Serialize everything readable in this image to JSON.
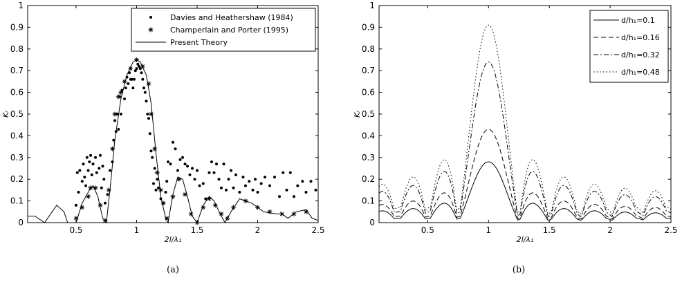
{
  "chart_data": [
    {
      "type": "scatter",
      "panel_caption": "(a)",
      "xlabel": "2l/λ₁",
      "ylabel": "Kᵣ",
      "xlim": [
        0.1,
        2.5
      ],
      "ylim": [
        0,
        1
      ],
      "xticks": [
        "0.5",
        "1",
        "1.5",
        "2",
        "2.5"
      ],
      "yticks": [
        "0",
        "0.1",
        "0.2",
        "0.3",
        "0.4",
        "0.5",
        "0.6",
        "0.7",
        "0.8",
        "0.9",
        "1"
      ],
      "legend_position": "top-right",
      "series": [
        {
          "name": "Davies and Heathershaw (1984)",
          "marker": "dot",
          "points": [
            [
              0.5,
              0.08
            ],
            [
              0.51,
              0.23
            ],
            [
              0.52,
              0.14
            ],
            [
              0.53,
              0.24
            ],
            [
              0.55,
              0.19
            ],
            [
              0.56,
              0.27
            ],
            [
              0.57,
              0.21
            ],
            [
              0.58,
              0.17
            ],
            [
              0.59,
              0.3
            ],
            [
              0.6,
              0.24
            ],
            [
              0.61,
              0.28
            ],
            [
              0.62,
              0.31
            ],
            [
              0.63,
              0.22
            ],
            [
              0.64,
              0.27
            ],
            [
              0.66,
              0.3
            ],
            [
              0.67,
              0.23
            ],
            [
              0.69,
              0.25
            ],
            [
              0.7,
              0.31
            ],
            [
              0.71,
              0.16
            ],
            [
              0.72,
              0.26
            ],
            [
              0.73,
              0.2
            ],
            [
              0.74,
              0.09
            ],
            [
              0.76,
              0.13
            ],
            [
              0.78,
              0.24
            ],
            [
              0.8,
              0.28
            ],
            [
              0.81,
              0.38
            ],
            [
              0.82,
              0.47
            ],
            [
              0.83,
              0.42
            ],
            [
              0.84,
              0.5
            ],
            [
              0.85,
              0.43
            ],
            [
              0.86,
              0.58
            ],
            [
              0.87,
              0.5
            ],
            [
              0.88,
              0.61
            ],
            [
              0.9,
              0.57
            ],
            [
              0.91,
              0.62
            ],
            [
              0.92,
              0.67
            ],
            [
              0.93,
              0.64
            ],
            [
              0.94,
              0.69
            ],
            [
              0.95,
              0.66
            ],
            [
              0.96,
              0.66
            ],
            [
              0.97,
              0.62
            ],
            [
              0.98,
              0.66
            ],
            [
              0.99,
              0.7
            ],
            [
              1.0,
              0.71
            ],
            [
              1.01,
              0.73
            ],
            [
              1.02,
              0.72
            ],
            [
              1.03,
              0.71
            ],
            [
              1.04,
              0.69
            ],
            [
              1.05,
              0.66
            ],
            [
              1.06,
              0.62
            ],
            [
              1.07,
              0.6
            ],
            [
              1.08,
              0.56
            ],
            [
              1.09,
              0.5
            ],
            [
              1.1,
              0.48
            ],
            [
              1.11,
              0.41
            ],
            [
              1.12,
              0.33
            ],
            [
              1.13,
              0.3
            ],
            [
              1.14,
              0.18
            ],
            [
              1.15,
              0.25
            ],
            [
              1.16,
              0.15
            ],
            [
              1.17,
              0.2
            ],
            [
              1.18,
              0.16
            ],
            [
              1.2,
              0.11
            ],
            [
              1.22,
              0.09
            ],
            [
              1.24,
              0.14
            ],
            [
              1.25,
              0.19
            ],
            [
              1.26,
              0.28
            ],
            [
              1.28,
              0.27
            ],
            [
              1.3,
              0.37
            ],
            [
              1.32,
              0.34
            ],
            [
              1.34,
              0.24
            ],
            [
              1.36,
              0.29
            ],
            [
              1.38,
              0.3
            ],
            [
              1.4,
              0.27
            ],
            [
              1.42,
              0.26
            ],
            [
              1.44,
              0.22
            ],
            [
              1.46,
              0.25
            ],
            [
              1.48,
              0.2
            ],
            [
              1.5,
              0.24
            ],
            [
              1.52,
              0.17
            ],
            [
              1.55,
              0.18
            ],
            [
              1.57,
              0.11
            ],
            [
              1.6,
              0.23
            ],
            [
              1.62,
              0.28
            ],
            [
              1.64,
              0.23
            ],
            [
              1.66,
              0.27
            ],
            [
              1.68,
              0.2
            ],
            [
              1.7,
              0.16
            ],
            [
              1.72,
              0.27
            ],
            [
              1.74,
              0.15
            ],
            [
              1.76,
              0.2
            ],
            [
              1.78,
              0.24
            ],
            [
              1.8,
              0.16
            ],
            [
              1.82,
              0.22
            ],
            [
              1.85,
              0.14
            ],
            [
              1.88,
              0.21
            ],
            [
              1.9,
              0.17
            ],
            [
              1.93,
              0.19
            ],
            [
              1.96,
              0.15
            ],
            [
              1.98,
              0.2
            ],
            [
              2.0,
              0.14
            ],
            [
              2.03,
              0.18
            ],
            [
              2.06,
              0.21
            ],
            [
              2.1,
              0.17
            ],
            [
              2.14,
              0.21
            ],
            [
              2.18,
              0.12
            ],
            [
              2.21,
              0.23
            ],
            [
              2.24,
              0.15
            ],
            [
              2.27,
              0.23
            ],
            [
              2.3,
              0.12
            ],
            [
              2.33,
              0.17
            ],
            [
              2.37,
              0.19
            ],
            [
              2.4,
              0.14
            ],
            [
              2.44,
              0.19
            ],
            [
              2.48,
              0.15
            ]
          ]
        },
        {
          "name": "Champerlain and Porter (1995)",
          "marker": "asterisk",
          "points": [
            [
              0.5,
              0.02
            ],
            [
              0.55,
              0.07
            ],
            [
              0.6,
              0.12
            ],
            [
              0.62,
              0.16
            ],
            [
              0.66,
              0.16
            ],
            [
              0.7,
              0.08
            ],
            [
              0.74,
              0.01
            ],
            [
              0.77,
              0.15
            ],
            [
              0.8,
              0.34
            ],
            [
              0.82,
              0.5
            ],
            [
              0.85,
              0.58
            ],
            [
              0.87,
              0.6
            ],
            [
              0.9,
              0.65
            ],
            [
              0.95,
              0.71
            ],
            [
              1.0,
              0.75
            ],
            [
              1.05,
              0.72
            ],
            [
              1.1,
              0.64
            ],
            [
              1.12,
              0.5
            ],
            [
              1.15,
              0.34
            ],
            [
              1.17,
              0.23
            ],
            [
              1.2,
              0.15
            ],
            [
              1.22,
              0.09
            ],
            [
              1.25,
              0.02
            ],
            [
              1.3,
              0.12
            ],
            [
              1.35,
              0.2
            ],
            [
              1.4,
              0.13
            ],
            [
              1.45,
              0.04
            ],
            [
              1.5,
              0.0
            ],
            [
              1.55,
              0.07
            ],
            [
              1.6,
              0.11
            ],
            [
              1.65,
              0.08
            ],
            [
              1.7,
              0.04
            ],
            [
              1.75,
              0.02
            ],
            [
              1.8,
              0.07
            ],
            [
              1.9,
              0.1
            ],
            [
              2.0,
              0.07
            ],
            [
              2.1,
              0.05
            ],
            [
              2.2,
              0.04
            ],
            [
              2.3,
              0.04
            ],
            [
              2.4,
              0.05
            ]
          ]
        },
        {
          "name": "Present Theory",
          "style": "solid",
          "points": [
            [
              0.1,
              0.03
            ],
            [
              0.16,
              0.03
            ],
            [
              0.24,
              0.0
            ],
            [
              0.34,
              0.08
            ],
            [
              0.4,
              0.05
            ],
            [
              0.43,
              0.0
            ],
            [
              0.5,
              0.0
            ],
            [
              0.55,
              0.09
            ],
            [
              0.61,
              0.15
            ],
            [
              0.64,
              0.17
            ],
            [
              0.68,
              0.12
            ],
            [
              0.72,
              0.02
            ],
            [
              0.75,
              0.0
            ],
            [
              0.78,
              0.15
            ],
            [
              0.82,
              0.38
            ],
            [
              0.87,
              0.57
            ],
            [
              0.92,
              0.68
            ],
            [
              0.97,
              0.74
            ],
            [
              1.0,
              0.75
            ],
            [
              1.03,
              0.74
            ],
            [
              1.08,
              0.68
            ],
            [
              1.12,
              0.55
            ],
            [
              1.16,
              0.32
            ],
            [
              1.2,
              0.12
            ],
            [
              1.24,
              0.02
            ],
            [
              1.26,
              0.0
            ],
            [
              1.3,
              0.13
            ],
            [
              1.34,
              0.21
            ],
            [
              1.38,
              0.2
            ],
            [
              1.42,
              0.12
            ],
            [
              1.46,
              0.03
            ],
            [
              1.5,
              0.0
            ],
            [
              1.55,
              0.08
            ],
            [
              1.6,
              0.12
            ],
            [
              1.64,
              0.1
            ],
            [
              1.69,
              0.04
            ],
            [
              1.73,
              0.0
            ],
            [
              1.78,
              0.05
            ],
            [
              1.85,
              0.11
            ],
            [
              1.95,
              0.09
            ],
            [
              2.05,
              0.05
            ],
            [
              2.15,
              0.04
            ],
            [
              2.2,
              0.04
            ],
            [
              2.25,
              0.02
            ],
            [
              2.32,
              0.05
            ],
            [
              2.4,
              0.06
            ],
            [
              2.45,
              0.02
            ],
            [
              2.5,
              0.01
            ]
          ]
        }
      ]
    },
    {
      "type": "line",
      "panel_caption": "(b)",
      "xlabel": "2l/λ₁",
      "ylabel": "Kᵣ",
      "xlim": [
        0.1,
        2.5
      ],
      "ylim": [
        0,
        1
      ],
      "xticks": [
        "0.5",
        "1",
        "1.5",
        "2",
        "2.5"
      ],
      "yticks": [
        "0",
        "0.1",
        "0.2",
        "0.3",
        "0.4",
        "0.5",
        "0.6",
        "0.7",
        "0.8",
        "0.9",
        "1"
      ],
      "legend_position": "top-right",
      "series": [
        {
          "name": "d/h₁=0.1",
          "style": "solid",
          "peak": 0.28,
          "floor": 0.02
        },
        {
          "name": "d/h₁=0.16",
          "style": "dashed",
          "peak": 0.43,
          "floor": 0.03
        },
        {
          "name": "d/h₁=0.32",
          "style": "dashdot",
          "peak": 0.74,
          "floor": 0.05
        },
        {
          "name": "d/h₁=0.48",
          "style": "dotted",
          "peak": 0.91,
          "floor": 0.07
        }
      ]
    }
  ]
}
